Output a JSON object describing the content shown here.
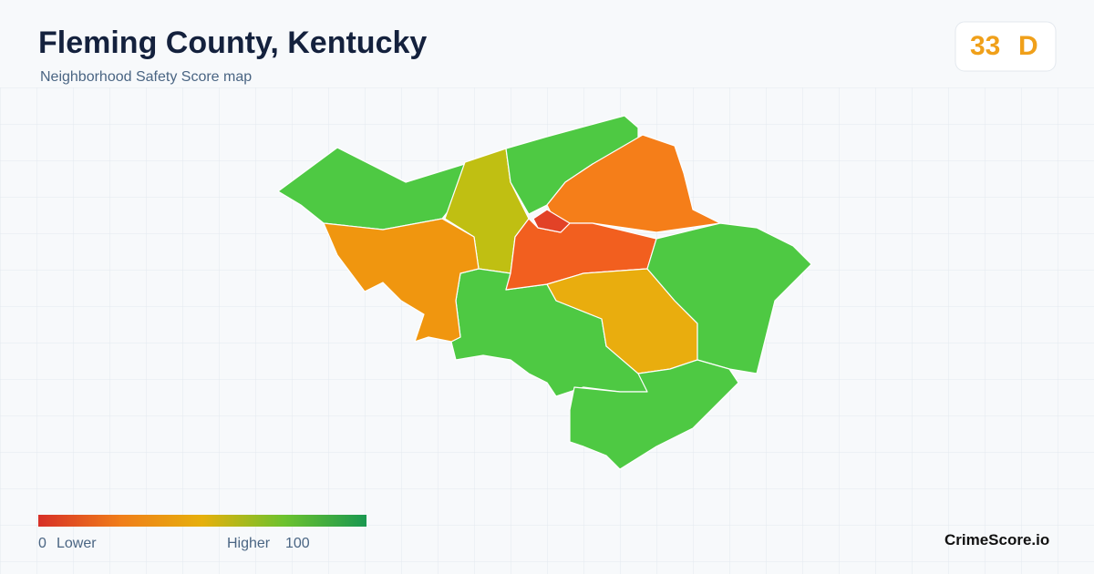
{
  "header": {
    "title": "Fleming County, Kentucky",
    "subtitle": "Neighborhood Safety Score map"
  },
  "badge": {
    "score": "33",
    "grade": "D"
  },
  "legend": {
    "min": "0",
    "low_label": "Lower",
    "high_label": "Higher",
    "max": "100"
  },
  "brand": "CrimeScore.io"
}
